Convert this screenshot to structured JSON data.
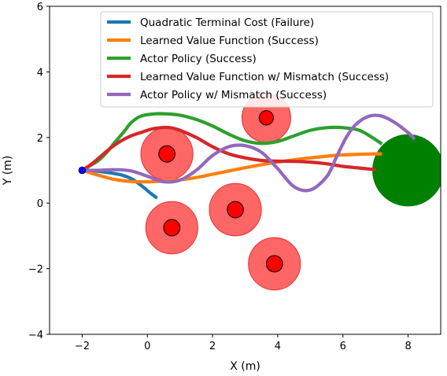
{
  "chart_data": {
    "type": "line",
    "title": "",
    "xlabel": "X (m)",
    "ylabel": "Y (m)",
    "xlim": [
      -3,
      9
    ],
    "ylim": [
      -4,
      6
    ],
    "x_ticks": [
      -2,
      0,
      2,
      4,
      6,
      8
    ],
    "x_tick_labels": [
      "−2",
      "0",
      "2",
      "4",
      "6",
      "8"
    ],
    "y_ticks": [
      -4,
      -2,
      0,
      2,
      4,
      6
    ],
    "y_tick_labels": [
      "−4",
      "−2",
      "0",
      "2",
      "4",
      "6"
    ],
    "grid": false,
    "legend_position": "top-right",
    "start_point": {
      "x": -2.0,
      "y": 1.0,
      "color": "#0000ff"
    },
    "goal": {
      "x": 8.0,
      "y": 1.0,
      "radius": 1.1,
      "color": "#008000"
    },
    "obstacles": [
      {
        "x": 0.6,
        "y": 1.5,
        "inner_radius": 0.25,
        "outer_radius": 0.8
      },
      {
        "x": 0.75,
        "y": -0.75,
        "inner_radius": 0.25,
        "outer_radius": 0.8
      },
      {
        "x": 2.7,
        "y": -0.2,
        "inner_radius": 0.25,
        "outer_radius": 0.8
      },
      {
        "x": 3.65,
        "y": 2.6,
        "inner_radius": 0.22,
        "outer_radius": 0.75
      },
      {
        "x": 3.9,
        "y": -1.85,
        "inner_radius": 0.25,
        "outer_radius": 0.8
      }
    ],
    "series": [
      {
        "name": "Quadratic Terminal Cost (Failure)",
        "color": "#1f77b4",
        "x": [
          -2.0,
          -1.6,
          -1.2,
          -0.8,
          -0.5,
          -0.3,
          -0.1,
          0.1,
          0.3
        ],
        "y": [
          1.0,
          0.98,
          0.93,
          0.86,
          0.75,
          0.62,
          0.47,
          0.3,
          0.15
        ]
      },
      {
        "name": "Learned Value Function (Success)",
        "color": "#ff7f0e",
        "x": [
          -2.0,
          -1.5,
          -1.0,
          -0.5,
          0.0,
          0.5,
          1.0,
          1.5,
          2.0,
          2.5,
          3.0,
          3.5,
          4.0,
          4.5,
          5.0,
          5.5,
          6.0,
          6.5,
          7.0,
          7.2
        ],
        "y": [
          1.0,
          0.85,
          0.72,
          0.66,
          0.65,
          0.67,
          0.71,
          0.78,
          0.88,
          0.98,
          1.08,
          1.17,
          1.25,
          1.32,
          1.38,
          1.43,
          1.47,
          1.49,
          1.5,
          1.5
        ]
      },
      {
        "name": "Actor Policy (Success)",
        "color": "#2ca02c",
        "x": [
          -2.0,
          -1.5,
          -1.2,
          -1.0,
          -0.7,
          -0.5,
          -0.2,
          0.2,
          0.6,
          1.0,
          1.5,
          2.0,
          2.5,
          3.0,
          3.5,
          4.0,
          4.5,
          5.0,
          5.5,
          6.0,
          6.5,
          6.9,
          7.2
        ],
        "y": [
          1.0,
          1.3,
          1.6,
          1.85,
          2.2,
          2.45,
          2.65,
          2.72,
          2.72,
          2.68,
          2.55,
          2.35,
          2.1,
          1.9,
          1.82,
          1.88,
          2.05,
          2.22,
          2.3,
          2.3,
          2.22,
          2.0,
          1.8
        ]
      },
      {
        "name": "Learned Value Function w/ Mismatch (Success)",
        "color": "#d62728",
        "x": [
          -2.0,
          -1.7,
          -1.4,
          -1.1,
          -0.8,
          -0.5,
          -0.2,
          0.1,
          0.4,
          0.7,
          1.0,
          1.5,
          2.0,
          2.5,
          3.0,
          3.5,
          4.0,
          4.5,
          5.0,
          5.5,
          6.0,
          6.5,
          7.0
        ],
        "y": [
          1.0,
          1.2,
          1.45,
          1.7,
          1.9,
          2.05,
          2.15,
          2.25,
          2.3,
          2.3,
          2.22,
          2.0,
          1.72,
          1.5,
          1.38,
          1.3,
          1.28,
          1.27,
          1.25,
          1.2,
          1.12,
          1.07,
          1.02
        ]
      },
      {
        "name": "Actor Policy w/ Mismatch (Success)",
        "color": "#9467bd",
        "x": [
          -2.0,
          -1.5,
          -1.0,
          -0.5,
          0.0,
          0.5,
          1.0,
          1.5,
          2.0,
          2.5,
          3.0,
          3.5,
          4.0,
          4.5,
          5.0,
          5.5,
          5.8,
          6.1,
          6.4,
          6.8,
          7.2,
          7.6,
          8.0,
          8.2
        ],
        "y": [
          1.0,
          1.0,
          1.02,
          0.98,
          0.82,
          0.65,
          0.7,
          1.0,
          1.45,
          1.72,
          1.75,
          1.55,
          1.05,
          0.5,
          0.4,
          0.8,
          1.4,
          2.0,
          2.4,
          2.65,
          2.65,
          2.45,
          2.15,
          1.95
        ]
      }
    ]
  }
}
